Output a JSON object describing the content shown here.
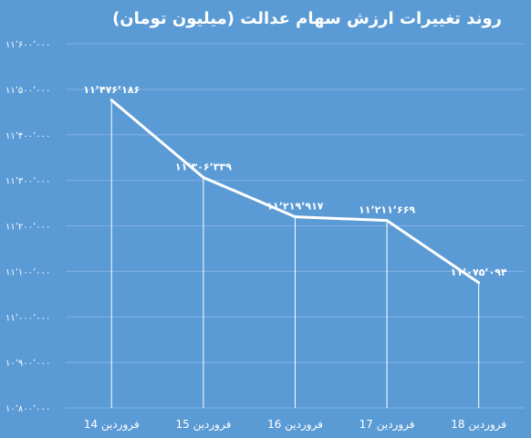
{
  "chart_data": {
    "type": "line",
    "title": "روند تغییرات ارزش سهام عدالت (میلیون تومان)",
    "categories": [
      "14 فروردین",
      "15 فروردین",
      "16 فروردین",
      "17 فروردین",
      "18 فروردین"
    ],
    "values": [
      11476186,
      11306339,
      11219917,
      11211669,
      11075094
    ],
    "data_labels": [
      "۱۱٬۴۷۶٬۱۸۶",
      "۱۱٬۳۰۶٬۳۳۹",
      "۱۱٬۲۱۹٬۹۱۷",
      "۱۱٬۲۱۱٬۶۶۹",
      "۱۱٬۰۷۵٬۰۹۴"
    ],
    "y_ticks": [
      10800000,
      10900000,
      11000000,
      11100000,
      11200000,
      11300000,
      11400000,
      11500000,
      11600000
    ],
    "y_tick_labels": [
      "۱۰٬۸۰۰٬۰۰۰",
      "۱۰٬۹۰۰٬۰۰۰",
      "۱۱٬۰۰۰٬۰۰۰",
      "۱۱٬۱۰۰٬۰۰۰",
      "۱۱٬۲۰۰٬۰۰۰",
      "۱۱٬۳۰۰٬۰۰۰",
      "۱۱٬۴۰۰٬۰۰۰",
      "۱۱٬۵۰۰٬۰۰۰",
      "۱۱٬۶۰۰٬۰۰۰"
    ],
    "ylim": [
      10800000,
      11600000
    ],
    "xlabel": "",
    "ylabel": "",
    "grid": true,
    "legend": "none",
    "colors": {
      "background": "#5b9bd5",
      "line": "#ffffff",
      "text": "#ffffff"
    }
  }
}
